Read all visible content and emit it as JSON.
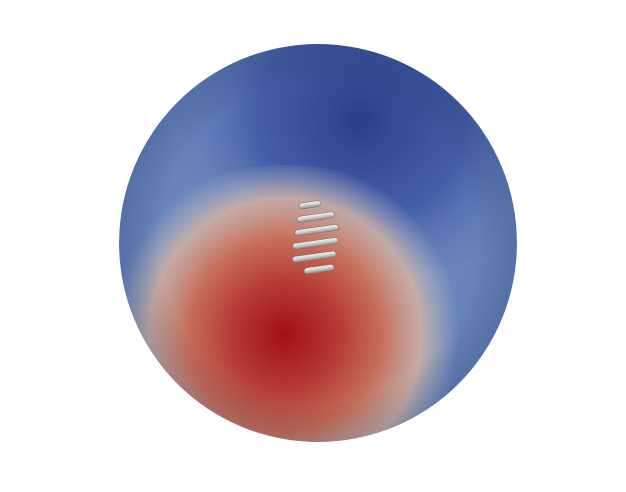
{
  "scene": {
    "background_color": "#ffffff",
    "colormap": {
      "high_color": "#a50f15",
      "mid_high_color": "#c85b47",
      "mid_color": "#d9c3b4",
      "mid_low_color": "#8ea4c8",
      "low_color": "#3b4f9b",
      "deep_low_color": "#2c3f8a"
    },
    "coil_color": "#cfcfcc",
    "coil_turns": 5
  }
}
